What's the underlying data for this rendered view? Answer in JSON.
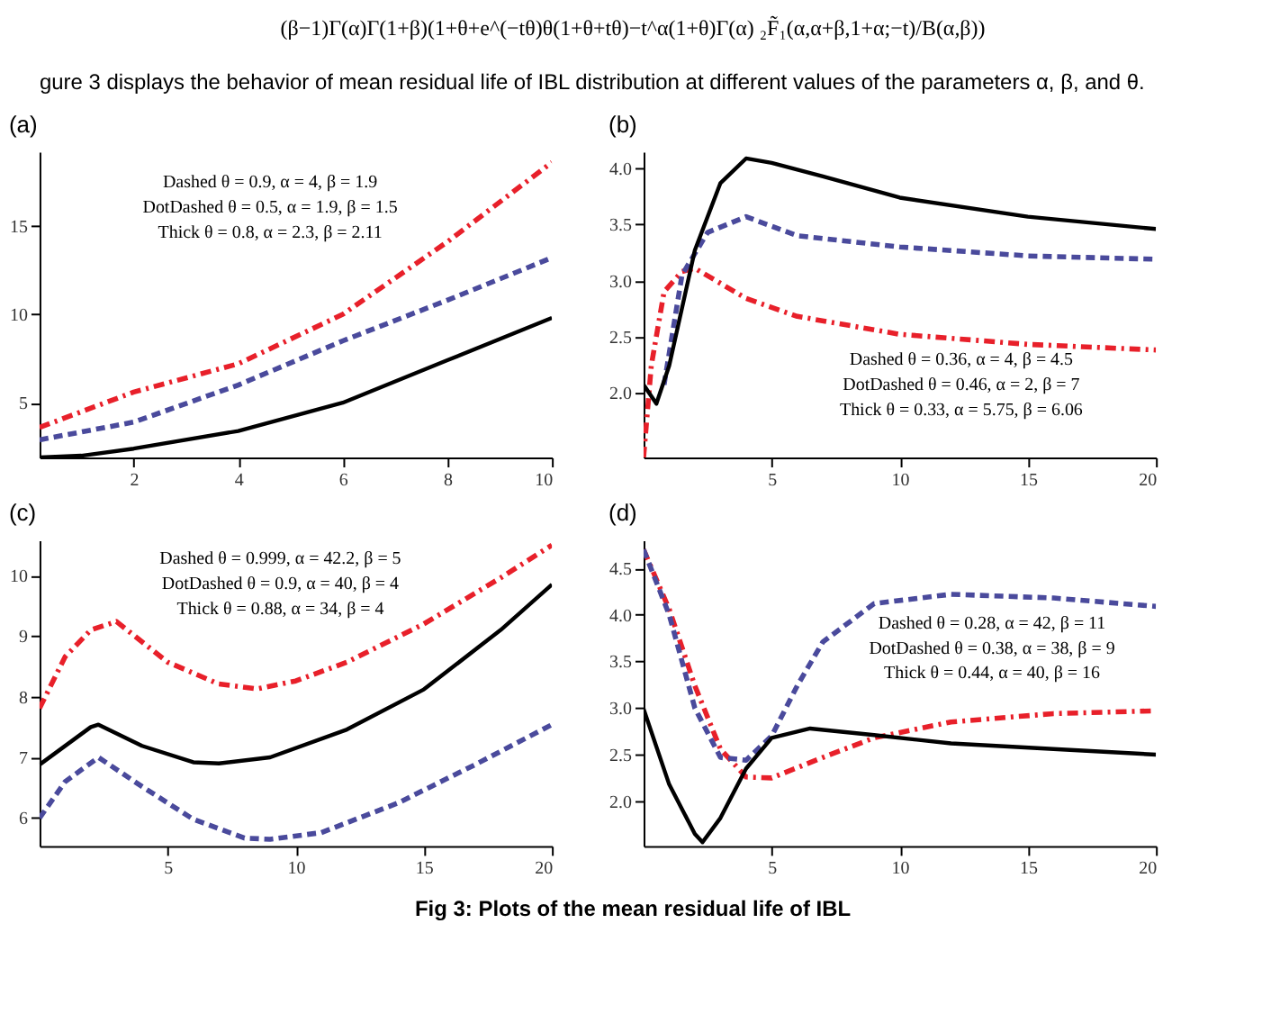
{
  "chart_data": [
    {
      "type": "other",
      "annotations": [
        "(β−1)Γ(α)Γ(1+β)(1+θ+e^(−tθ)θ(1+θ+tθ)−t^α(1+θ)Γ(α) ₂F̃₁(α,α+β,1+α;−t)/B(α,β))",
        "gure 3 displays the behavior of mean residual life of IBL distribution at different values of the parameters α, β, and θ."
      ]
    },
    {
      "type": "line",
      "title": "(a)",
      "xlim": [
        0.2,
        10
      ],
      "ylim": [
        1.9,
        19.2
      ],
      "xticks": [
        2,
        4,
        6,
        8,
        10
      ],
      "yticks": [
        5,
        10,
        15
      ],
      "annotations": [
        "Dashed  θ = 0.9, α = 4, β = 1.9",
        "DotDashed  θ = 0.5, α = 1.9, β = 1.5",
        "Thick  θ = 0.8, α = 2.3, β = 2.11"
      ],
      "series": [
        {
          "color": "#e8202a",
          "line_style": "dashdot",
          "x": [
            0.2,
            2,
            4,
            6,
            8,
            10
          ],
          "values": [
            3.6,
            5.6,
            7.2,
            10,
            14.1,
            18.6
          ]
        },
        {
          "color": "#4a4a9c",
          "line_style": "dashed",
          "x": [
            0.2,
            2,
            4,
            6,
            8,
            10
          ],
          "values": [
            2.9,
            3.9,
            6.0,
            8.5,
            10.8,
            13.2
          ]
        },
        {
          "color": "#000000",
          "line_style": "solid",
          "x": [
            0.2,
            1,
            2,
            4,
            6,
            8,
            10
          ],
          "values": [
            1.9,
            2.0,
            2.4,
            3.4,
            5.0,
            7.4,
            9.8
          ]
        }
      ]
    },
    {
      "type": "line",
      "title": "(b)",
      "xlim": [
        0,
        20
      ],
      "ylim": [
        1.42,
        4.15
      ],
      "xticks": [
        5,
        10,
        15,
        20
      ],
      "yticks": [
        {
          "value": 2,
          "label": "2.0"
        },
        2.5,
        {
          "value": 3,
          "label": "3.0"
        },
        3.5,
        {
          "value": 4,
          "label": "4.0"
        }
      ],
      "annotations": [
        "Dashed  θ = 0.36, α = 4, β = 4.5",
        "DotDashed  θ = 0.46, α = 2, β = 7",
        "Thick  θ = 0.33, α = 5.75, β = 6.06"
      ],
      "series": [
        {
          "color": "#e8202a",
          "line_style": "dashdot",
          "x": [
            0,
            0.3,
            0.8,
            1.5,
            2,
            4,
            6,
            10,
            15,
            20
          ],
          "values": [
            1.42,
            2.24,
            2.9,
            3.08,
            3.11,
            2.84,
            2.68,
            2.52,
            2.43,
            2.38
          ]
        },
        {
          "color": "#4a4a9c",
          "line_style": "dashed",
          "x": [
            0.8,
            1.5,
            2.5,
            4,
            6,
            10,
            15,
            20
          ],
          "values": [
            2.07,
            3.05,
            3.43,
            3.57,
            3.4,
            3.3,
            3.22,
            3.19
          ]
        },
        {
          "color": "#000000",
          "line_style": "solid",
          "x": [
            0,
            0.5,
            1,
            2,
            3,
            4,
            5,
            7,
            10,
            15,
            20
          ],
          "values": [
            2.07,
            1.9,
            2.24,
            3.27,
            3.87,
            4.09,
            4.05,
            3.93,
            3.74,
            3.57,
            3.46
          ]
        }
      ]
    },
    {
      "type": "line",
      "title": "(c)",
      "xlim": [
        0,
        20
      ],
      "ylim": [
        5.54,
        10.58
      ],
      "xticks": [
        5,
        10,
        15,
        20
      ],
      "yticks": [
        6,
        7,
        8,
        9,
        10
      ],
      "annotations": [
        "Dashed  θ = 0.999, α = 42.2, β = 5",
        "DotDashed  θ = 0.9, α = 40, β = 4",
        "Thick  θ = 0.88, α = 34, β = 4"
      ],
      "series": [
        {
          "color": "#e8202a",
          "line_style": "dashdot",
          "x": [
            0,
            1,
            2,
            3,
            5,
            7,
            8.5,
            10,
            12,
            15,
            18,
            20
          ],
          "values": [
            7.81,
            8.66,
            9.1,
            9.24,
            8.57,
            8.21,
            8.13,
            8.26,
            8.57,
            9.2,
            9.96,
            10.5
          ]
        },
        {
          "color": "#4a4a9c",
          "line_style": "dashed",
          "x": [
            0,
            1,
            2.3,
            4,
            6,
            8,
            9,
            11,
            14,
            17,
            20
          ],
          "values": [
            6.0,
            6.6,
            7.0,
            6.52,
            5.98,
            5.67,
            5.65,
            5.76,
            6.25,
            6.88,
            7.54
          ]
        },
        {
          "color": "#000000",
          "line_style": "solid",
          "x": [
            0,
            2,
            2.3,
            4,
            6,
            7,
            9,
            12,
            15,
            18,
            20
          ],
          "values": [
            6.88,
            7.5,
            7.54,
            7.19,
            6.92,
            6.9,
            7.0,
            7.46,
            8.12,
            9.1,
            9.85
          ]
        }
      ]
    },
    {
      "type": "line",
      "title": "(d)",
      "xlim": [
        0,
        20
      ],
      "ylim": [
        1.52,
        4.8
      ],
      "xticks": [
        5,
        10,
        15,
        20
      ],
      "yticks": [
        {
          "value": 2,
          "label": "2.0"
        },
        2.5,
        {
          "value": 3,
          "label": "3.0"
        },
        3.5,
        {
          "value": 4,
          "label": "4.0"
        },
        4.5
      ],
      "annotations": [
        "Dashed  θ = 0.28, α = 42, β = 11",
        "DotDashed  θ = 0.38, α = 38, β = 9",
        "Thick  θ = 0.44, α = 40, β = 16"
      ],
      "series": [
        {
          "color": "#e8202a",
          "line_style": "dashdot",
          "x": [
            0,
            1,
            2,
            3,
            4,
            5,
            7,
            9,
            12,
            16,
            20
          ],
          "values": [
            4.7,
            4.06,
            3.24,
            2.56,
            2.26,
            2.25,
            2.47,
            2.68,
            2.85,
            2.94,
            2.97
          ]
        },
        {
          "color": "#4a4a9c",
          "line_style": "dashed",
          "x": [
            0,
            1,
            2,
            3,
            4,
            5,
            6,
            7,
            9,
            12,
            16,
            20
          ],
          "values": [
            4.7,
            4.0,
            3.0,
            2.47,
            2.44,
            2.7,
            3.24,
            3.71,
            4.12,
            4.22,
            4.18,
            4.09
          ]
        },
        {
          "color": "#000000",
          "line_style": "solid",
          "x": [
            0,
            1,
            2,
            2.3,
            3,
            4,
            5,
            6.5,
            9,
            12,
            16,
            20
          ],
          "values": [
            2.99,
            2.18,
            1.65,
            1.56,
            1.82,
            2.35,
            2.68,
            2.78,
            2.71,
            2.62,
            2.56,
            2.5
          ]
        }
      ]
    },
    {
      "type": "other",
      "annotations": [
        "Fig 3: Plots of the mean residual life of IBL"
      ]
    }
  ]
}
